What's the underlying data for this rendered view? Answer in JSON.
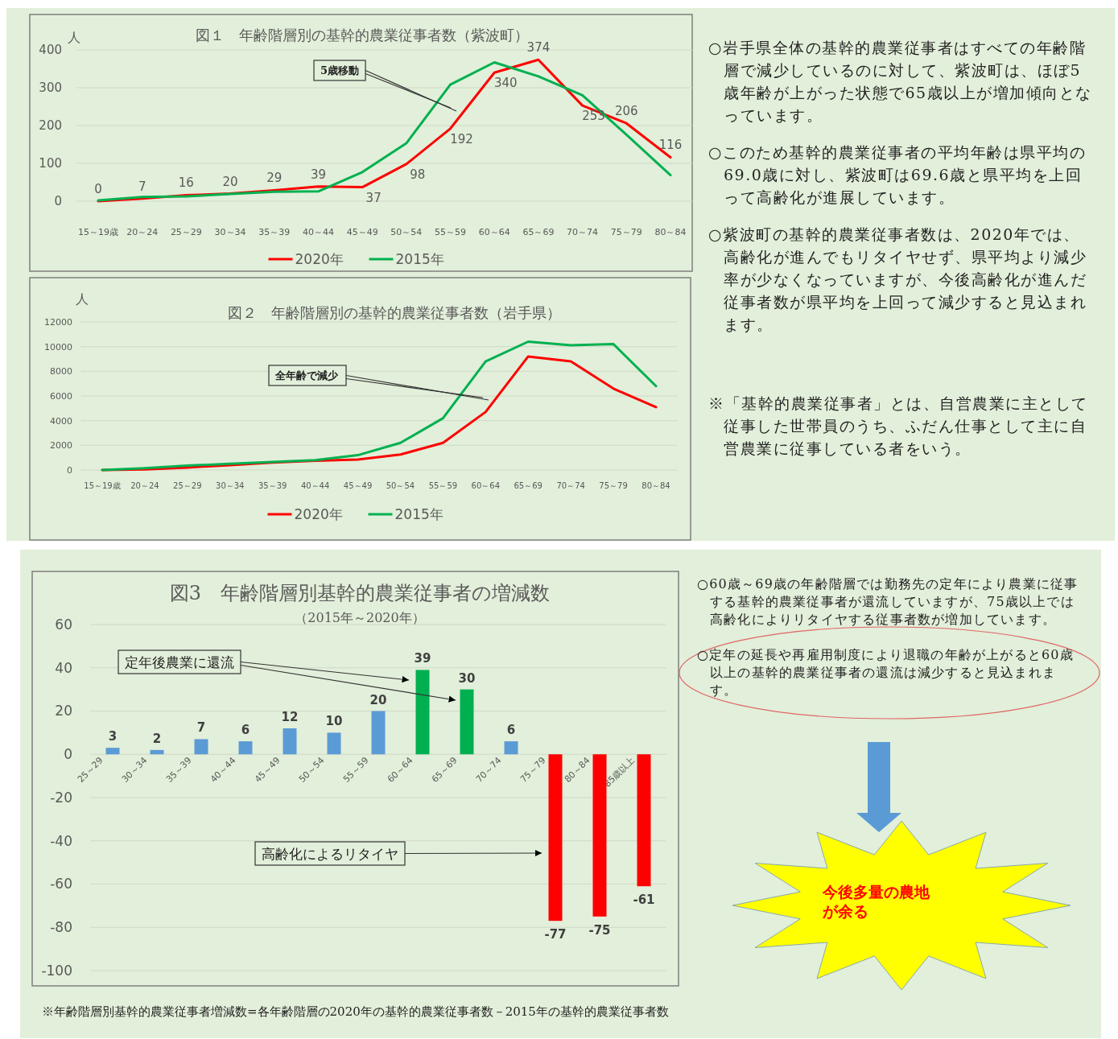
{
  "chart_data": [
    {
      "type": "line",
      "title": "図１　年齢階層別の基幹的農業従事者数（紫波町）",
      "ylabel": "人",
      "categories": [
        "15～19歳",
        "20～24",
        "25～29",
        "30～34",
        "35～39",
        "40～44",
        "45～49",
        "50～54",
        "55～59",
        "60～64",
        "65～69",
        "70～74",
        "75～79",
        "80～84"
      ],
      "series": [
        {
          "name": "2020年",
          "color": "#ff0000",
          "values": [
            0,
            7,
            16,
            20,
            29,
            39,
            37,
            98,
            192,
            340,
            374,
            253,
            206,
            116
          ],
          "value_labels": [
            "0",
            "7",
            "16",
            "20",
            "29",
            "39",
            "37",
            "98",
            "192",
            "340",
            "374",
            "253",
            "206",
            "116"
          ]
        },
        {
          "name": "2015年",
          "color": "#00b050",
          "values": [
            2,
            11,
            13,
            19,
            25,
            26,
            77,
            153,
            308,
            367,
            330,
            280,
            176,
            69
          ]
        }
      ],
      "ylim": [
        0,
        400
      ],
      "yticks": [
        0,
        100,
        200,
        300,
        400
      ],
      "grid": "y",
      "legend": "bottom",
      "annotations": [
        "5歳移動"
      ]
    },
    {
      "type": "line",
      "title": "図２　年齢階層別の基幹的農業従事者数（岩手県）",
      "ylabel": "人",
      "categories": [
        "15～19歳",
        "20～24",
        "25～29",
        "30～34",
        "35～39",
        "40～44",
        "45～49",
        "50～54",
        "55～59",
        "60～64",
        "65～69",
        "70～74",
        "75～79",
        "80～84"
      ],
      "series": [
        {
          "name": "2020年",
          "color": "#ff0000",
          "values": [
            0,
            50,
            200,
            400,
            600,
            750,
            850,
            1250,
            2200,
            4700,
            9200,
            8800,
            6600,
            5100
          ]
        },
        {
          "name": "2015年",
          "color": "#00b050",
          "values": [
            0,
            150,
            350,
            500,
            650,
            800,
            1200,
            2200,
            4200,
            8800,
            10400,
            10100,
            10200,
            6800
          ]
        }
      ],
      "ylim": [
        0,
        12000
      ],
      "yticks": [
        0,
        2000,
        4000,
        6000,
        8000,
        10000,
        12000
      ],
      "grid": "y",
      "legend": "bottom",
      "annotations": [
        "全年齢で減少"
      ]
    },
    {
      "type": "other",
      "annotations": [
        "○岩手県全体の基幹的農業従事者はすべての年齢階層で減少しているのに対して、紫波町は、ほぼ5歳年齢が上がった状態で65歳以上が増加傾向となっています。",
        "○このため基幹的農業従事者の平均年齢は県平均の69.0歳に対し、紫波町は69.6歳と県平均を上回って高齢化が進展しています。",
        "○紫波町の基幹的農業従事者数は、2020年では、高齢化が進んでもリタイヤせず、県平均より減少率が少なくなっていますが、今後高齢化が進んだ従事者数が県平均を上回って減少すると見込まれます。",
        "※「基幹的農業従事者」とは、自営農業に主として従事した世帯員のうち、ふだん仕事として主に自営農業に従事している者をいう。"
      ]
    },
    {
      "type": "bar",
      "title": "図3　年齢階層別基幹的農業従事者の増減数",
      "subtitle": "（2015年～2020年）",
      "categories": [
        "25～29",
        "30～34",
        "35～39",
        "40～44",
        "45～49",
        "50～54",
        "55～59",
        "60～64",
        "65～69",
        "70～74",
        "75～79",
        "80～84",
        "85歳以上"
      ],
      "values": [
        3,
        2,
        7,
        6,
        12,
        10,
        20,
        39,
        30,
        6,
        -77,
        -75,
        -61
      ],
      "colors": [
        "#5b9bd5",
        "#5b9bd5",
        "#5b9bd5",
        "#5b9bd5",
        "#5b9bd5",
        "#5b9bd5",
        "#5b9bd5",
        "#00b050",
        "#00b050",
        "#5b9bd5",
        "#ff0000",
        "#ff0000",
        "#ff0000"
      ],
      "data_labels": true,
      "ylim": [
        -100,
        60
      ],
      "yticks": [
        -100,
        -80,
        -60,
        -40,
        -20,
        0,
        20,
        40,
        60
      ],
      "grid": "y",
      "annotations": [
        "定年後農業に還流",
        "高齢化によるリタイヤ",
        "※年齢階層別基幹的農業従事者増減数=各年齢階層の2020年の基幹的農業従事者数－2015年の基幹的農業従事者数"
      ]
    },
    {
      "type": "other",
      "annotations": [
        "○60歳～69歳の年齢階層では勤務先の定年により農業に従事する基幹的農業従事者が還流していますが、75歳以上では高齢化によりリタイヤする従事者数が増加しています。",
        "○定年の延長や再雇用制度により退職の年齢が上がると60歳以上の基幹的農業従事者の還流は減少すると見込まれます。",
        "今後多量の農地が余る"
      ]
    }
  ]
}
